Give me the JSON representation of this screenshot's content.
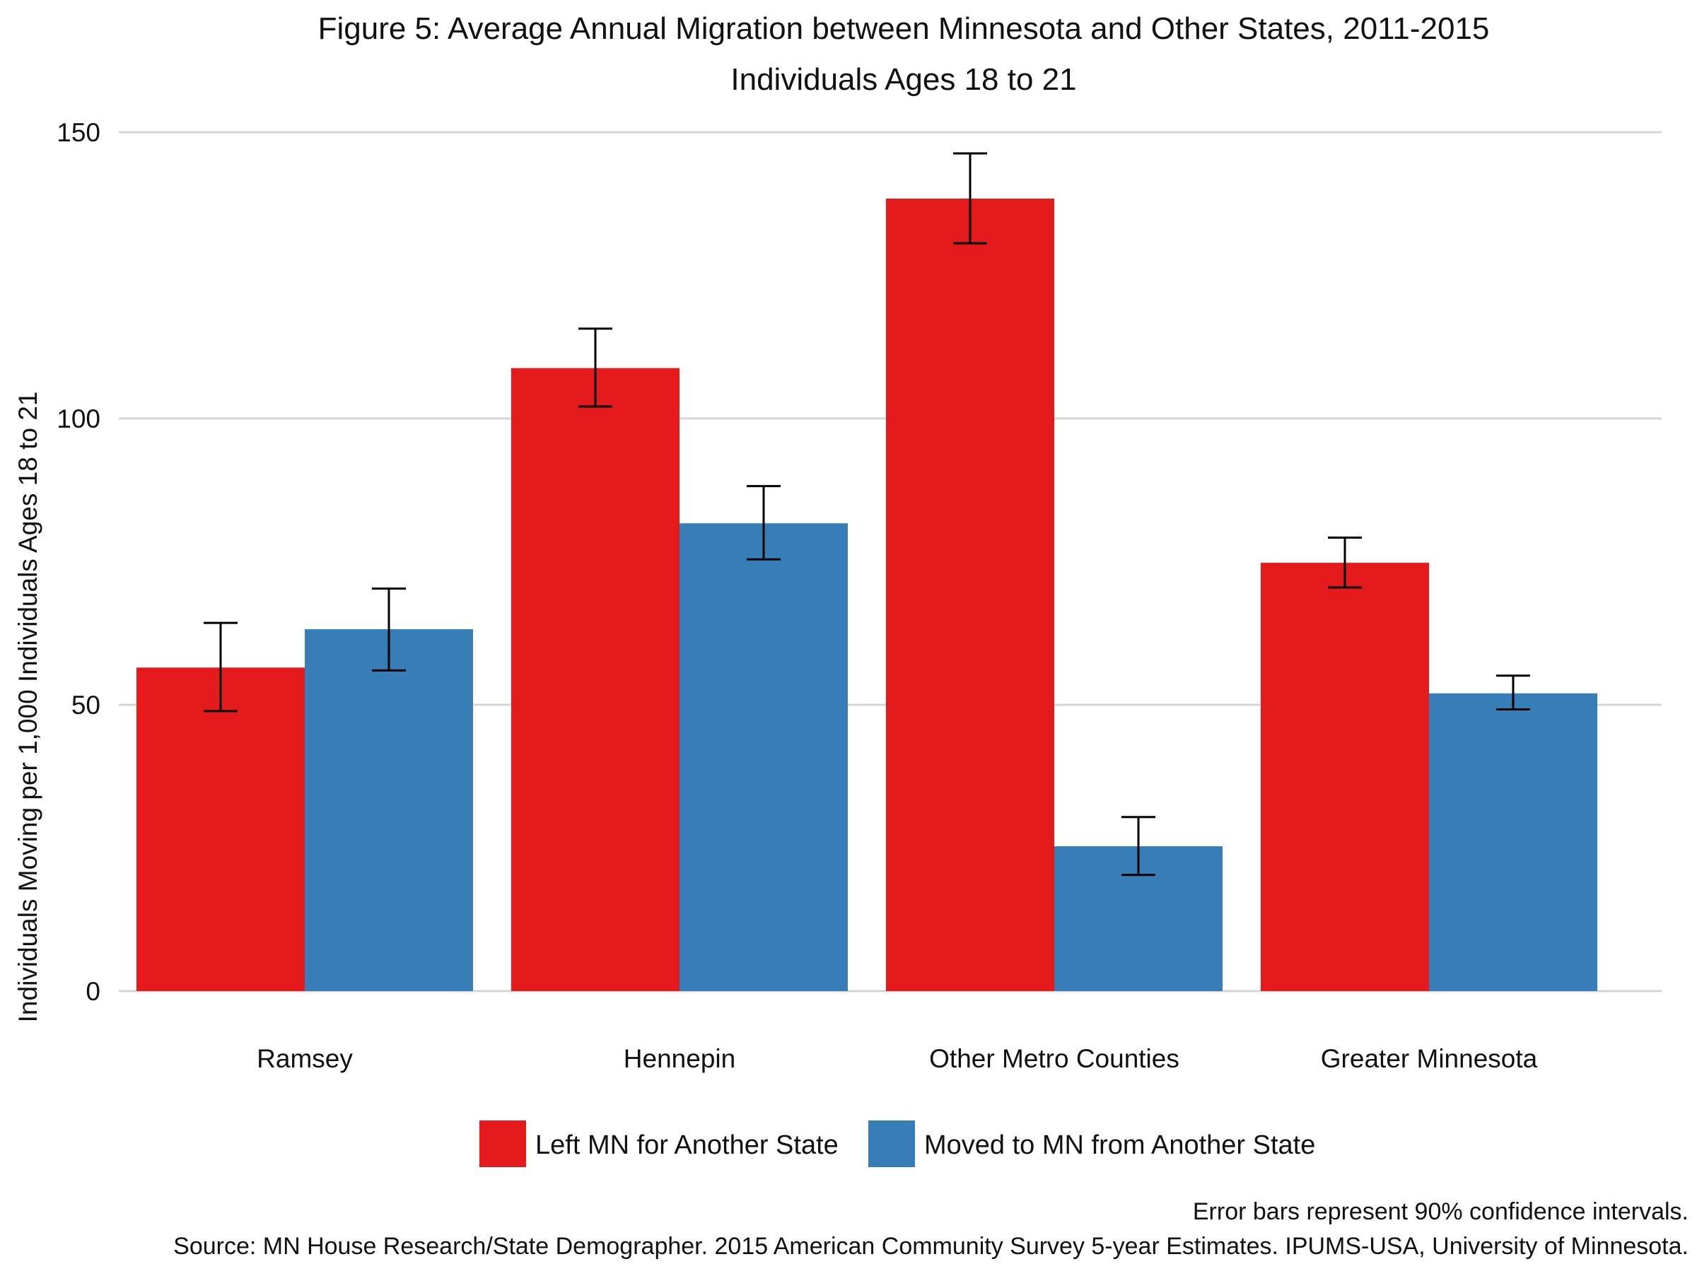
{
  "chart_data": {
    "type": "bar",
    "title": "Figure 5: Average Annual Migration between Minnesota and Other States, 2011-2015",
    "subtitle": "Individuals Ages 18 to 21",
    "xlabel": "",
    "ylabel": "Individuals Moving per 1,000 Individuals Ages 18 to 21",
    "ylim": [
      0,
      150
    ],
    "yticks": [
      0,
      50,
      100,
      150
    ],
    "grid": true,
    "legend_position": "bottom",
    "categories": [
      "Ramsey",
      "Hennepin",
      "Other Metro Counties",
      "Greater Minnesota"
    ],
    "series": [
      {
        "name": "Left MN for Another State",
        "color": "#e41a1c",
        "values": [
          56.5,
          108.8,
          138.4,
          74.8
        ],
        "error_low": [
          48.9,
          102.1,
          130.6,
          70.5
        ],
        "error_high": [
          64.3,
          115.7,
          146.3,
          79.2
        ]
      },
      {
        "name": "Moved to MN from Another State",
        "color": "#377eb8",
        "values": [
          63.2,
          81.7,
          25.3,
          52.0
        ],
        "error_low": [
          56.0,
          75.4,
          20.3,
          49.2
        ],
        "error_high": [
          70.3,
          88.2,
          30.4,
          55.1
        ]
      }
    ],
    "footnote": "Error bars represent 90% confidence intervals.",
    "source": "Source: MN House Research/State Demographer. 2015 American Community Survey 5-year Estimates. IPUMS-USA, University of Minnesota."
  }
}
